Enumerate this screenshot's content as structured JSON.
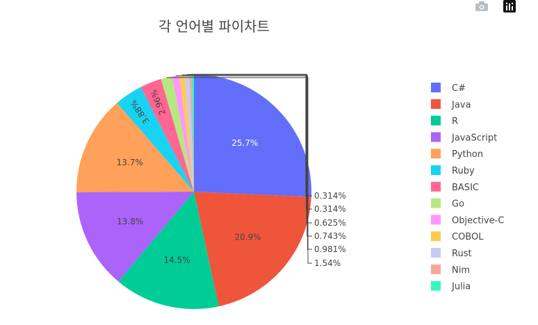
{
  "modebar": {
    "camera_icon": "camera-icon",
    "plotly_icon": "plotly-logo-icon"
  },
  "chart_data": {
    "type": "pie",
    "title": "각 언어별 파이차트",
    "labels": [
      "C#",
      "Java",
      "R",
      "JavaScript",
      "Python",
      "Ruby",
      "BASIC",
      "Go",
      "Objective-C",
      "COBOL",
      "Rust",
      "Nim",
      "Julia"
    ],
    "values": [
      25.7,
      20.9,
      14.5,
      13.8,
      13.7,
      3.88,
      2.96,
      1.54,
      0.981,
      0.743,
      0.625,
      0.314,
      0.314
    ],
    "percent_labels": [
      "25.7%",
      "20.9%",
      "14.5%",
      "13.8%",
      "13.7%",
      "3.88%",
      "2.96%",
      "1.54%",
      "0.981%",
      "0.743%",
      "0.625%",
      "0.314%",
      "0.314%"
    ],
    "colors": [
      "#636efa",
      "#EF553B",
      "#00cc96",
      "#ab63fa",
      "#FFA15A",
      "#19d3f3",
      "#FF6692",
      "#B6E880",
      "#FF97FF",
      "#FECB52",
      "#c6cbf5",
      "#f4a898",
      "#39f5c3"
    ],
    "direction": "clockwise",
    "legend_position": "right"
  }
}
